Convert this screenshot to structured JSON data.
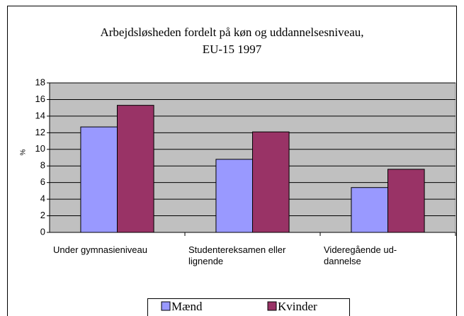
{
  "chart_data": {
    "type": "bar",
    "title": "Arbejdsløsheden fordelt på køn og uddannelsesniveau,\nEU-15 1997",
    "y_label": "%",
    "categories": [
      "Under gymnasieniveau",
      "Studentereksamen eller\nlignende",
      "Videregående ud-\ndannelse"
    ],
    "series": [
      {
        "name": "Mænd",
        "color": "#9999ff",
        "values": [
          12.7,
          8.8,
          5.4
        ]
      },
      {
        "name": "Kvinder",
        "color": "#993366",
        "values": [
          15.3,
          12.1,
          7.6
        ]
      }
    ],
    "ylim": [
      0,
      18
    ],
    "yticks": [
      0,
      2,
      4,
      6,
      8,
      10,
      12,
      14,
      16,
      18
    ],
    "grid": true,
    "plot_background": "#c0c0c0",
    "legend": "bottom"
  }
}
